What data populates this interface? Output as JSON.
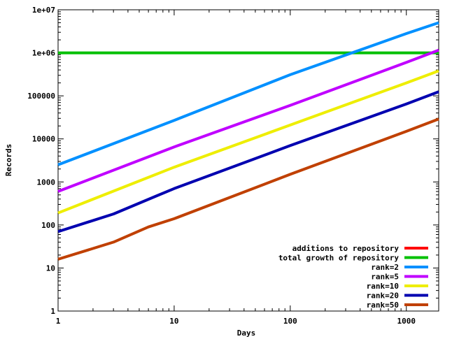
{
  "chart_data": {
    "type": "line",
    "xlabel": "Days",
    "ylabel": "Records",
    "xscale": "log",
    "yscale": "log",
    "xlim": [
      1,
      1900
    ],
    "ylim": [
      1,
      10000000
    ],
    "xticks": [
      1,
      10,
      100,
      1000
    ],
    "xtick_labels": [
      "1",
      "10",
      "100",
      "1000"
    ],
    "yticks": [
      1,
      10,
      100,
      1000,
      10000,
      100000,
      1000000,
      10000000
    ],
    "ytick_labels": [
      "1",
      "10",
      "100",
      "1000",
      "10000",
      "100000",
      "1e+06",
      "1e+07"
    ],
    "grid": false,
    "legend_position": "bottom-right",
    "series": [
      {
        "name": "additions to repository",
        "color": "#ff0000",
        "x": [],
        "y": []
      },
      {
        "name": "total growth of repository",
        "color": "#00c000",
        "x": [
          1,
          1900
        ],
        "y": [
          1000000,
          1000000
        ]
      },
      {
        "name": "rank=2",
        "color": "#0090ff",
        "x": [
          1,
          10,
          100,
          1000,
          1900
        ],
        "y": [
          2500,
          27000,
          310000,
          2800000,
          5000000
        ]
      },
      {
        "name": "rank=5",
        "color": "#c000ff",
        "x": [
          1,
          10,
          100,
          1000,
          1900
        ],
        "y": [
          600,
          6500,
          60000,
          600000,
          1150000
        ]
      },
      {
        "name": "rank=10",
        "color": "#eeee00",
        "x": [
          1,
          10,
          100,
          1000,
          1900
        ],
        "y": [
          190,
          2200,
          21000,
          200000,
          380000
        ]
      },
      {
        "name": "rank=20",
        "color": "#0000b0",
        "x": [
          1,
          3,
          7,
          10,
          100,
          1000,
          1900
        ],
        "y": [
          70,
          180,
          470,
          700,
          7000,
          65000,
          125000
        ]
      },
      {
        "name": "rank=50",
        "color": "#c04000",
        "x": [
          1,
          3,
          6,
          10,
          100,
          1000,
          1900
        ],
        "y": [
          16,
          40,
          90,
          140,
          1500,
          15000,
          29000
        ]
      }
    ]
  }
}
